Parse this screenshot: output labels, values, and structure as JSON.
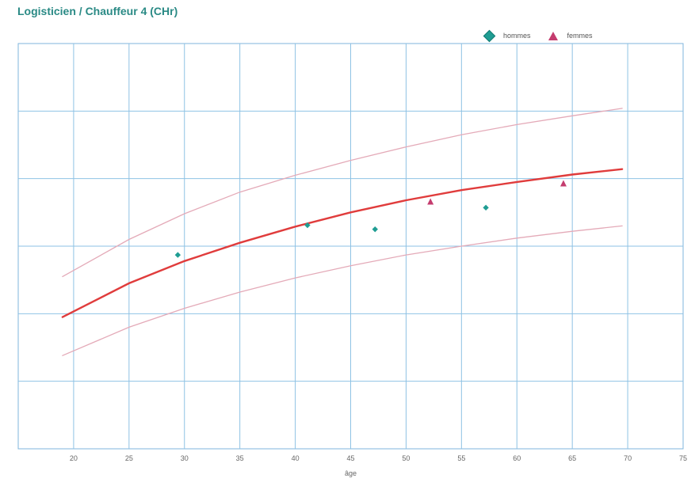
{
  "title": "Logisticien / Chauffeur 4 (CHr)",
  "legend": [
    {
      "label": "hommes",
      "marker": "diamond",
      "color": "#1f9d93"
    },
    {
      "label": "femmes",
      "marker": "triangle",
      "color": "#c43c6e"
    }
  ],
  "chart_data": {
    "type": "scatter",
    "title": "Logisticien / Chauffeur 4 (CHr)",
    "xlabel": "âge",
    "ylabel": "",
    "xlim": [
      15,
      75
    ],
    "ylim": [
      0,
      6
    ],
    "xticks": [
      "20",
      "25",
      "30",
      "35",
      "40",
      "45",
      "50",
      "55",
      "60",
      "65",
      "70",
      "75"
    ],
    "grid": true,
    "legend_position": "top-right",
    "series": [
      {
        "name": "hommes",
        "marker": "diamond",
        "color": "#1f9d93",
        "points": [
          [
            29.4,
            2.87
          ],
          [
            41.1,
            3.31
          ],
          [
            47.2,
            3.25
          ],
          [
            57.2,
            3.57
          ]
        ]
      },
      {
        "name": "femmes",
        "marker": "triangle",
        "color": "#c43c6e",
        "points": [
          [
            52.2,
            3.65
          ],
          [
            64.2,
            3.92
          ]
        ]
      }
    ],
    "curves": [
      {
        "role": "upper-band",
        "color": "#e4aab8",
        "width": 1.3,
        "x": [
          19,
          25,
          30,
          35,
          40,
          45,
          50,
          55,
          60,
          65,
          69.5
        ],
        "y": [
          2.55,
          3.1,
          3.48,
          3.8,
          4.05,
          4.27,
          4.47,
          4.65,
          4.8,
          4.93,
          5.04
        ]
      },
      {
        "role": "mean",
        "color": "#e03c3c",
        "width": 2.4,
        "x": [
          19,
          25,
          30,
          35,
          40,
          45,
          50,
          55,
          60,
          65,
          69.5
        ],
        "y": [
          1.95,
          2.45,
          2.78,
          3.05,
          3.29,
          3.5,
          3.68,
          3.83,
          3.95,
          4.06,
          4.14
        ]
      },
      {
        "role": "lower-band",
        "color": "#e4aab8",
        "width": 1.3,
        "x": [
          19,
          25,
          30,
          35,
          40,
          45,
          50,
          55,
          60,
          65,
          69.5
        ],
        "y": [
          1.38,
          1.8,
          2.08,
          2.32,
          2.53,
          2.71,
          2.87,
          3.0,
          3.12,
          3.22,
          3.3
        ]
      }
    ]
  }
}
